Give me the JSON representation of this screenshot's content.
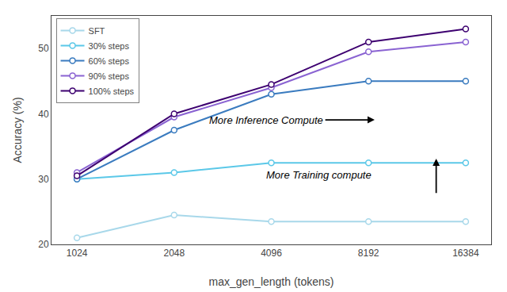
{
  "chart_data": {
    "type": "line",
    "categories": [
      "1024",
      "2048",
      "4096",
      "8192",
      "16384"
    ],
    "xlabel": "max_gen_length (tokens)",
    "ylabel": "Accuracy (%)",
    "ylim": [
      20,
      55
    ],
    "yticks": [
      20,
      30,
      40,
      50
    ],
    "grid": false,
    "legend": "upper left",
    "marker": "circle",
    "line_style": "solid",
    "series": [
      {
        "name": "SFT",
        "color": "#a8d8ea",
        "values": [
          21.0,
          24.5,
          23.5,
          23.5,
          23.5
        ]
      },
      {
        "name": "30% steps",
        "color": "#5bc8e8",
        "values": [
          30.0,
          31.0,
          32.5,
          32.5,
          32.5
        ]
      },
      {
        "name": "60% steps",
        "color": "#3a7bbf",
        "values": [
          30.0,
          37.5,
          43.0,
          45.0,
          45.0
        ]
      },
      {
        "name": "90% steps",
        "color": "#8a63d2",
        "values": [
          31.0,
          39.5,
          44.0,
          49.5,
          51.0
        ]
      },
      {
        "name": "100% steps",
        "color": "#3d0070",
        "values": [
          30.5,
          40.0,
          44.5,
          51.0,
          53.0
        ]
      }
    ],
    "annotations": [
      "More Inference Compute",
      "More Training compute"
    ]
  }
}
